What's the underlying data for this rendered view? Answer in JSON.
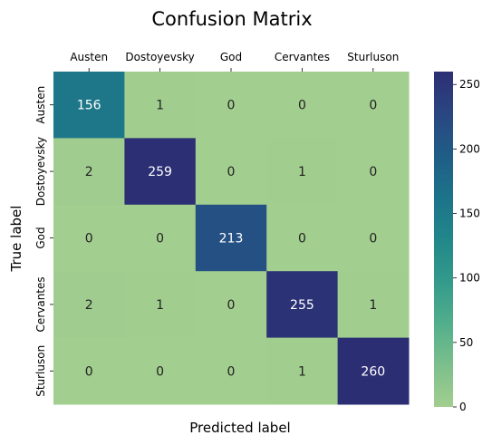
{
  "chart_data": {
    "type": "heatmap",
    "title": "Confusion Matrix",
    "xlabel": "Predicted label",
    "ylabel": "True label",
    "x_categories": [
      "Austen",
      "Dostoyevsky",
      "God",
      "Cervantes",
      "Sturluson"
    ],
    "y_categories": [
      "Austen",
      "Dostoyevsky",
      "God",
      "Cervantes",
      "Sturluson"
    ],
    "x_ticks_position": "top",
    "values": [
      [
        156,
        1,
        0,
        0,
        0
      ],
      [
        2,
        259,
        0,
        1,
        0
      ],
      [
        0,
        0,
        213,
        0,
        0
      ],
      [
        2,
        1,
        0,
        255,
        1
      ],
      [
        0,
        0,
        0,
        1,
        260
      ]
    ],
    "color_range": [
      0,
      260
    ],
    "colorbar_ticks": [
      0,
      50,
      100,
      150,
      200,
      250
    ],
    "colormap": "crest",
    "colormap_stops": [
      "#a2ce8f",
      "#7cbf8c",
      "#51ae8c",
      "#339a8b",
      "#21878a",
      "#1c7389",
      "#1f5d87",
      "#2a4681",
      "#2c2e74"
    ],
    "grid": false,
    "legend": "colorbar-right"
  }
}
